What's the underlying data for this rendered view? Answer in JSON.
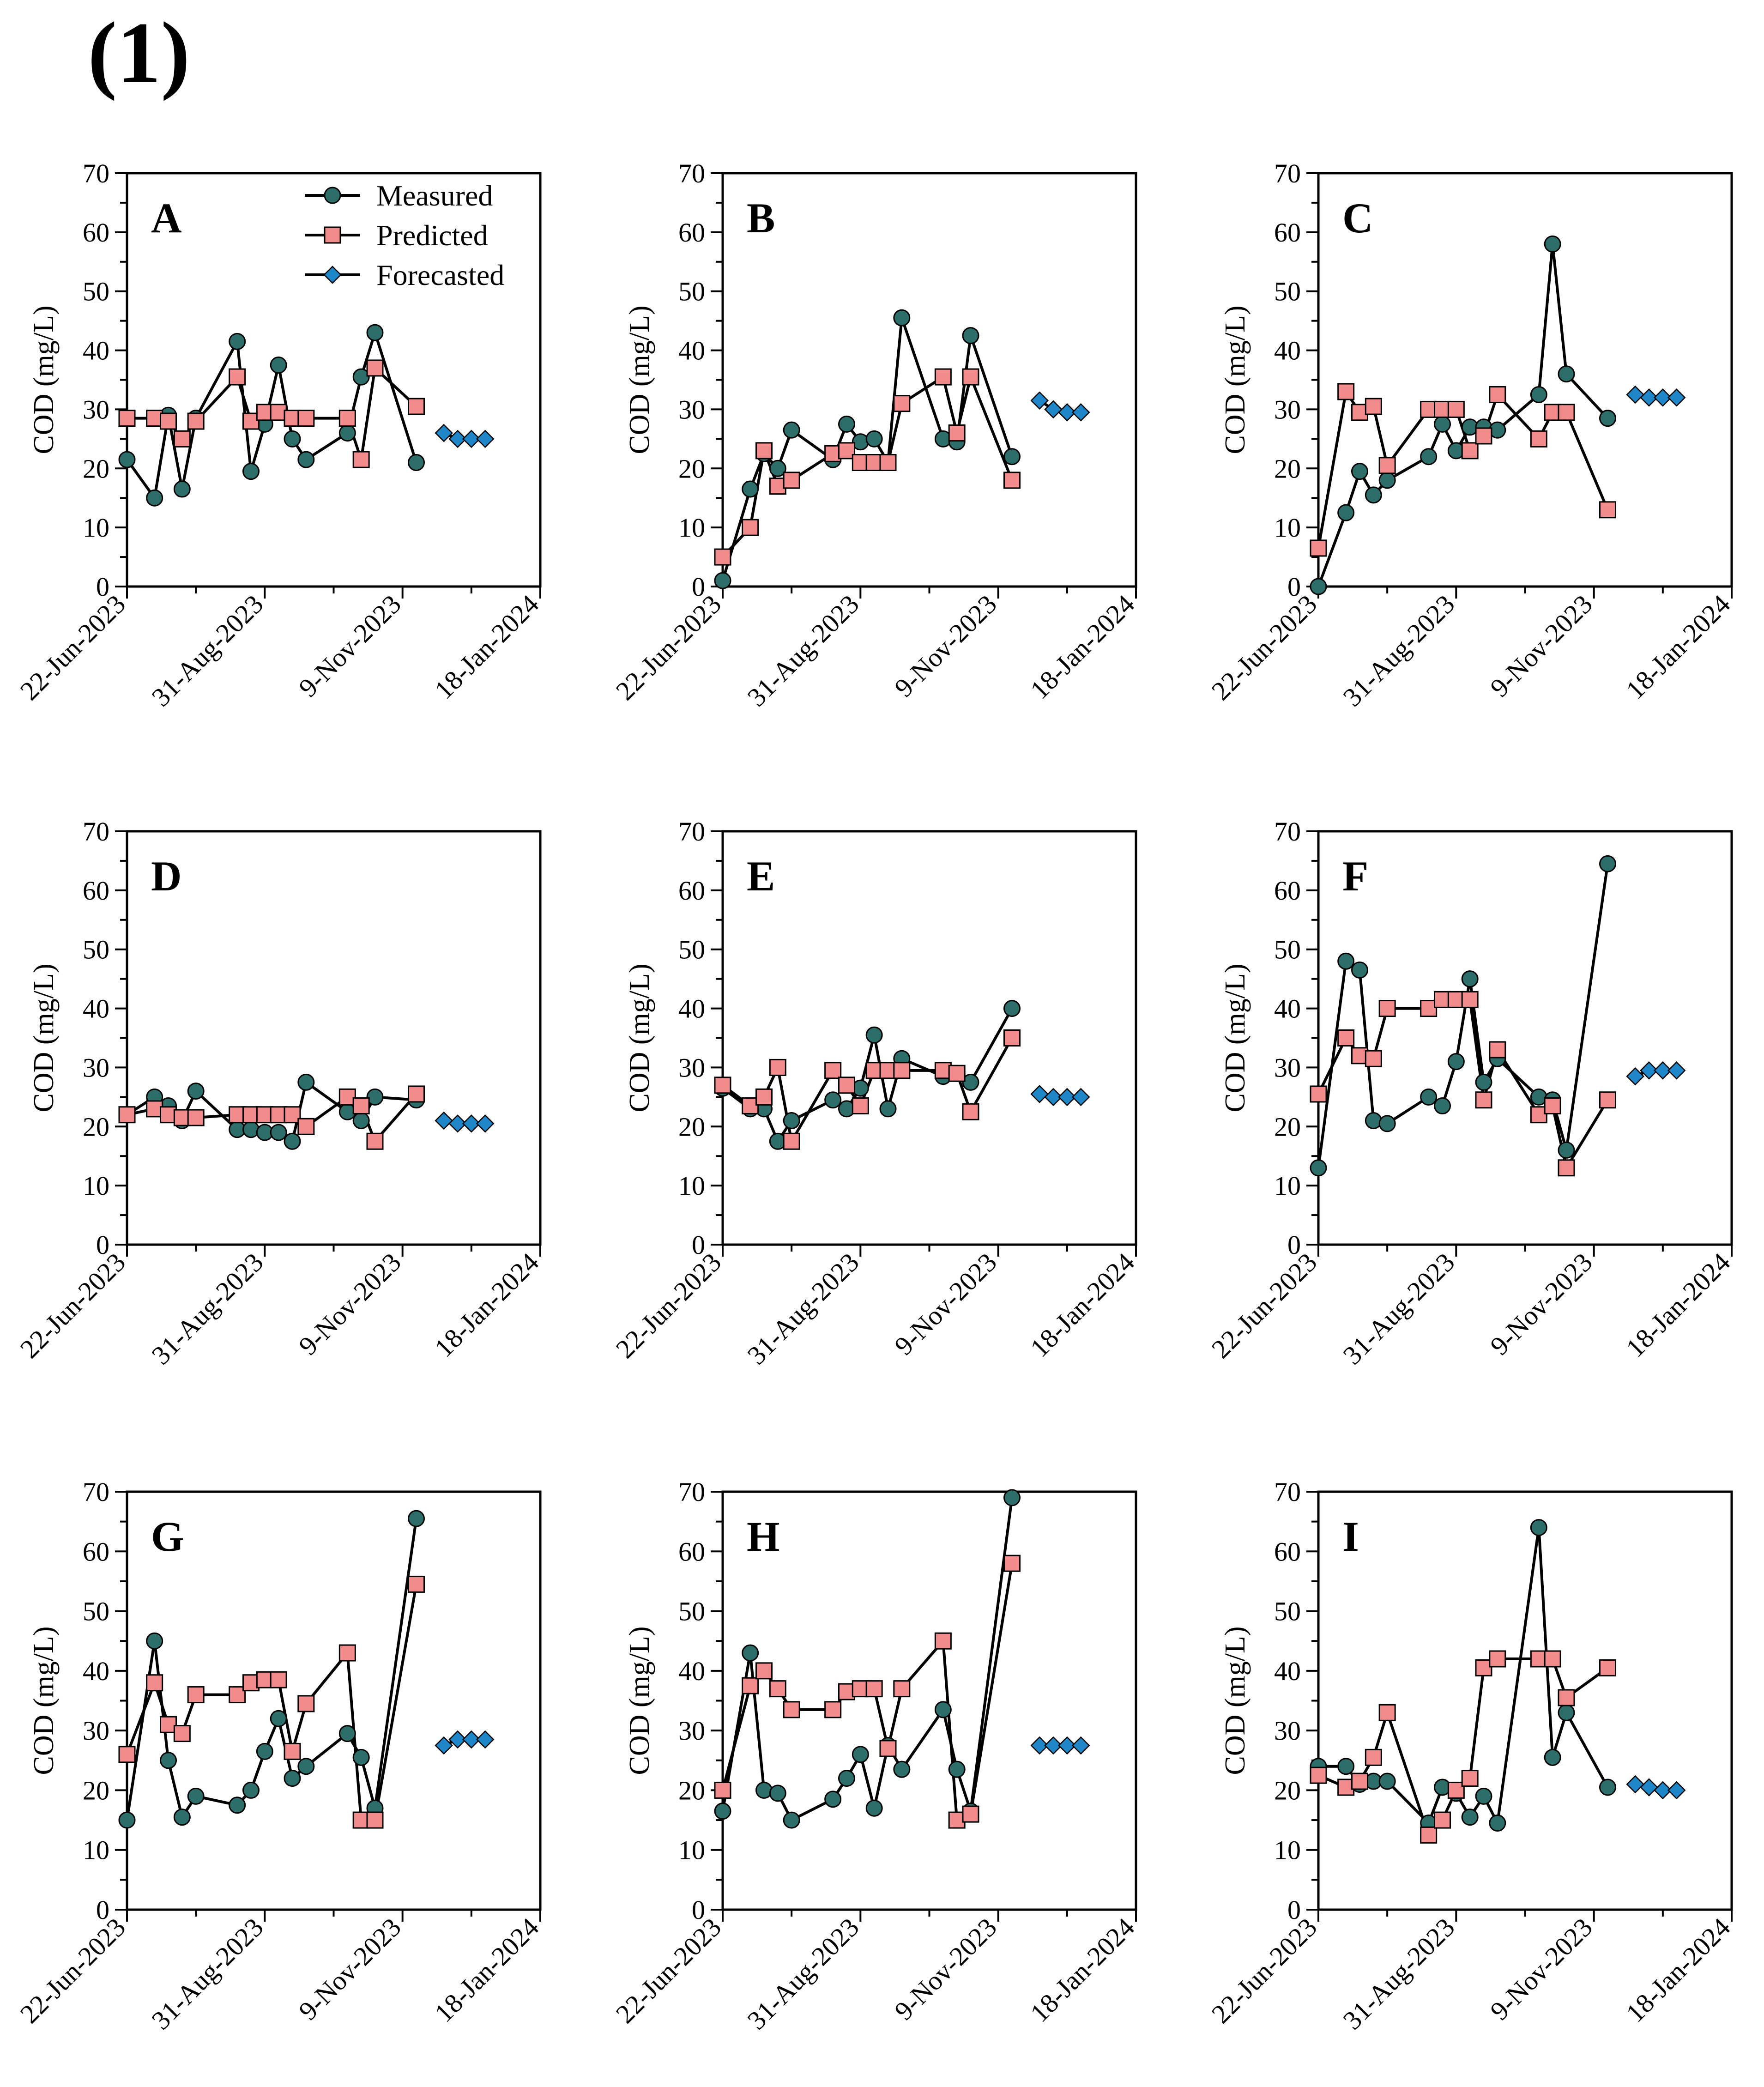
{
  "figure_label": "(1)",
  "colors": {
    "measured": "#2e6e6a",
    "predicted": "#f28b8b",
    "forecasted": "#1f87c8",
    "axis": "#000000"
  },
  "chart_data": {
    "type": "line",
    "ylabel": "COD (mg/L)",
    "ylim": [
      0,
      70
    ],
    "y_ticks": [
      0,
      10,
      20,
      30,
      40,
      50,
      60,
      70
    ],
    "x_ticks": [
      "22-Jun-2023",
      "31-Aug-2023",
      "9-Nov-2023",
      "18-Jan-2024"
    ],
    "x_tick_days": [
      0,
      70,
      140,
      210
    ],
    "x_unit": "days since 22-Jun-2023",
    "legend": [
      "Measured",
      "Predicted",
      "Forecasted"
    ],
    "panels": [
      {
        "label": "A",
        "measured": [
          [
            0,
            21.5
          ],
          [
            14,
            15
          ],
          [
            21,
            29
          ],
          [
            28,
            16.5
          ],
          [
            35,
            28.5
          ],
          [
            56,
            41.5
          ],
          [
            63,
            19.5
          ],
          [
            70,
            27.5
          ],
          [
            77,
            37.5
          ],
          [
            84,
            25
          ],
          [
            91,
            21.5
          ],
          [
            112,
            26
          ],
          [
            119,
            35.5
          ],
          [
            126,
            43
          ],
          [
            147,
            21
          ]
        ],
        "predicted": [
          [
            0,
            28.5
          ],
          [
            14,
            28.5
          ],
          [
            21,
            28
          ],
          [
            28,
            25
          ],
          [
            35,
            28
          ],
          [
            56,
            35.5
          ],
          [
            63,
            28
          ],
          [
            70,
            29.5
          ],
          [
            77,
            29.5
          ],
          [
            84,
            28.5
          ],
          [
            91,
            28.5
          ],
          [
            112,
            28.5
          ],
          [
            119,
            21.5
          ],
          [
            126,
            37
          ],
          [
            147,
            30.5
          ]
        ],
        "forecasted": [
          [
            161,
            26
          ],
          [
            168,
            25
          ],
          [
            175,
            25
          ],
          [
            182,
            25
          ]
        ]
      },
      {
        "label": "B",
        "measured": [
          [
            0,
            1
          ],
          [
            14,
            16.5
          ],
          [
            21,
            22.5
          ],
          [
            28,
            20
          ],
          [
            35,
            26.5
          ],
          [
            56,
            21.5
          ],
          [
            63,
            27.5
          ],
          [
            70,
            24.5
          ],
          [
            77,
            25
          ],
          [
            84,
            21
          ],
          [
            91,
            45.5
          ],
          [
            112,
            25
          ],
          [
            119,
            24.5
          ],
          [
            126,
            42.5
          ],
          [
            147,
            22
          ]
        ],
        "predicted": [
          [
            0,
            5
          ],
          [
            14,
            10
          ],
          [
            21,
            23
          ],
          [
            28,
            17
          ],
          [
            35,
            18
          ],
          [
            56,
            22.5
          ],
          [
            63,
            23
          ],
          [
            70,
            21
          ],
          [
            77,
            21
          ],
          [
            84,
            21
          ],
          [
            91,
            31
          ],
          [
            112,
            35.5
          ],
          [
            119,
            26
          ],
          [
            126,
            35.5
          ],
          [
            147,
            18
          ]
        ],
        "forecasted": [
          [
            161,
            31.5
          ],
          [
            168,
            30
          ],
          [
            175,
            29.5
          ],
          [
            182,
            29.5
          ]
        ]
      },
      {
        "label": "C",
        "measured": [
          [
            0,
            0
          ],
          [
            14,
            12.5
          ],
          [
            21,
            19.5
          ],
          [
            28,
            15.5
          ],
          [
            35,
            18
          ],
          [
            56,
            22
          ],
          [
            63,
            27.5
          ],
          [
            70,
            23
          ],
          [
            77,
            27
          ],
          [
            84,
            27
          ],
          [
            91,
            26.5
          ],
          [
            112,
            32.5
          ],
          [
            119,
            58
          ],
          [
            126,
            36
          ],
          [
            147,
            28.5
          ]
        ],
        "predicted": [
          [
            0,
            6.5
          ],
          [
            14,
            33
          ],
          [
            21,
            29.5
          ],
          [
            28,
            30.5
          ],
          [
            35,
            20.5
          ],
          [
            56,
            30
          ],
          [
            63,
            30
          ],
          [
            70,
            30
          ],
          [
            77,
            23
          ],
          [
            84,
            25.5
          ],
          [
            91,
            32.5
          ],
          [
            112,
            25
          ],
          [
            119,
            29.5
          ],
          [
            126,
            29.5
          ],
          [
            147,
            13
          ]
        ],
        "forecasted": [
          [
            161,
            32.5
          ],
          [
            168,
            32
          ],
          [
            175,
            32
          ],
          [
            182,
            32
          ]
        ]
      },
      {
        "label": "D",
        "measured": [
          [
            0,
            22
          ],
          [
            14,
            25
          ],
          [
            21,
            23.5
          ],
          [
            28,
            21
          ],
          [
            35,
            26
          ],
          [
            56,
            19.5
          ],
          [
            63,
            19.5
          ],
          [
            70,
            19
          ],
          [
            77,
            19
          ],
          [
            84,
            17.5
          ],
          [
            91,
            27.5
          ],
          [
            112,
            22.5
          ],
          [
            119,
            21
          ],
          [
            126,
            25
          ],
          [
            147,
            24.5
          ]
        ],
        "predicted": [
          [
            0,
            22
          ],
          [
            14,
            23
          ],
          [
            21,
            22
          ],
          [
            28,
            21.5
          ],
          [
            35,
            21.5
          ],
          [
            56,
            22
          ],
          [
            63,
            22
          ],
          [
            70,
            22
          ],
          [
            77,
            22
          ],
          [
            84,
            22
          ],
          [
            91,
            20
          ],
          [
            112,
            25
          ],
          [
            119,
            23.5
          ],
          [
            126,
            17.5
          ],
          [
            147,
            25.5
          ]
        ],
        "forecasted": [
          [
            161,
            21
          ],
          [
            168,
            20.5
          ],
          [
            175,
            20.5
          ],
          [
            182,
            20.5
          ]
        ]
      },
      {
        "label": "E",
        "measured": [
          [
            0,
            26.5
          ],
          [
            14,
            23
          ],
          [
            21,
            23
          ],
          [
            28,
            17.5
          ],
          [
            35,
            21
          ],
          [
            56,
            24.5
          ],
          [
            63,
            23
          ],
          [
            70,
            26.5
          ],
          [
            77,
            35.5
          ],
          [
            84,
            23
          ],
          [
            91,
            31.5
          ],
          [
            112,
            28.5
          ],
          [
            119,
            29
          ],
          [
            126,
            27.5
          ],
          [
            147,
            40
          ]
        ],
        "predicted": [
          [
            0,
            27
          ],
          [
            14,
            23.5
          ],
          [
            21,
            25
          ],
          [
            28,
            30
          ],
          [
            35,
            17.5
          ],
          [
            56,
            29.5
          ],
          [
            63,
            27
          ],
          [
            70,
            23.5
          ],
          [
            77,
            29.5
          ],
          [
            84,
            29.5
          ],
          [
            91,
            29.5
          ],
          [
            112,
            29.5
          ],
          [
            119,
            29
          ],
          [
            126,
            22.5
          ],
          [
            147,
            35
          ]
        ],
        "forecasted": [
          [
            161,
            25.5
          ],
          [
            168,
            25
          ],
          [
            175,
            25
          ],
          [
            182,
            25
          ]
        ]
      },
      {
        "label": "F",
        "measured": [
          [
            0,
            13
          ],
          [
            14,
            48
          ],
          [
            21,
            46.5
          ],
          [
            28,
            21
          ],
          [
            35,
            20.5
          ],
          [
            56,
            25
          ],
          [
            63,
            23.5
          ],
          [
            70,
            31
          ],
          [
            77,
            45
          ],
          [
            84,
            27.5
          ],
          [
            91,
            31.5
          ],
          [
            112,
            25
          ],
          [
            119,
            24.5
          ],
          [
            126,
            16
          ],
          [
            147,
            64.5
          ]
        ],
        "predicted": [
          [
            0,
            25.5
          ],
          [
            14,
            35
          ],
          [
            21,
            32
          ],
          [
            28,
            31.5
          ],
          [
            35,
            40
          ],
          [
            56,
            40
          ],
          [
            63,
            41.5
          ],
          [
            70,
            41.5
          ],
          [
            77,
            41.5
          ],
          [
            84,
            24.5
          ],
          [
            91,
            33
          ],
          [
            112,
            22
          ],
          [
            119,
            23.5
          ],
          [
            126,
            13
          ],
          [
            147,
            24.5
          ]
        ],
        "forecasted": [
          [
            161,
            28.5
          ],
          [
            168,
            29.5
          ],
          [
            175,
            29.5
          ],
          [
            182,
            29.5
          ]
        ]
      },
      {
        "label": "G",
        "measured": [
          [
            0,
            15
          ],
          [
            14,
            45
          ],
          [
            21,
            25
          ],
          [
            28,
            15.5
          ],
          [
            35,
            19
          ],
          [
            56,
            17.5
          ],
          [
            63,
            20
          ],
          [
            70,
            26.5
          ],
          [
            77,
            32
          ],
          [
            84,
            22
          ],
          [
            91,
            24
          ],
          [
            112,
            29.5
          ],
          [
            119,
            25.5
          ],
          [
            126,
            17
          ],
          [
            147,
            65.5
          ]
        ],
        "predicted": [
          [
            0,
            26
          ],
          [
            14,
            38
          ],
          [
            21,
            31
          ],
          [
            28,
            29.5
          ],
          [
            35,
            36
          ],
          [
            56,
            36
          ],
          [
            63,
            38
          ],
          [
            70,
            38.5
          ],
          [
            77,
            38.5
          ],
          [
            84,
            26.5
          ],
          [
            91,
            34.5
          ],
          [
            112,
            43
          ],
          [
            119,
            15
          ],
          [
            126,
            15
          ],
          [
            147,
            54.5
          ]
        ],
        "forecasted": [
          [
            161,
            27.5
          ],
          [
            168,
            28.5
          ],
          [
            175,
            28.5
          ],
          [
            182,
            28.5
          ]
        ]
      },
      {
        "label": "H",
        "measured": [
          [
            0,
            16.5
          ],
          [
            14,
            43
          ],
          [
            21,
            20
          ],
          [
            28,
            19.5
          ],
          [
            35,
            15
          ],
          [
            56,
            18.5
          ],
          [
            63,
            22
          ],
          [
            70,
            26
          ],
          [
            77,
            17
          ],
          [
            84,
            27.5
          ],
          [
            91,
            23.5
          ],
          [
            112,
            33.5
          ],
          [
            119,
            23.5
          ],
          [
            126,
            16.5
          ],
          [
            147,
            69
          ]
        ],
        "predicted": [
          [
            0,
            20
          ],
          [
            14,
            37.5
          ],
          [
            21,
            40
          ],
          [
            28,
            37
          ],
          [
            35,
            33.5
          ],
          [
            56,
            33.5
          ],
          [
            63,
            36.5
          ],
          [
            70,
            37
          ],
          [
            77,
            37
          ],
          [
            84,
            27
          ],
          [
            91,
            37
          ],
          [
            112,
            45
          ],
          [
            119,
            15
          ],
          [
            126,
            16
          ],
          [
            147,
            58
          ]
        ],
        "forecasted": [
          [
            161,
            27.5
          ],
          [
            168,
            27.5
          ],
          [
            175,
            27.5
          ],
          [
            182,
            27.5
          ]
        ]
      },
      {
        "label": "I",
        "measured": [
          [
            0,
            24
          ],
          [
            14,
            24
          ],
          [
            21,
            21
          ],
          [
            28,
            21.5
          ],
          [
            35,
            21.5
          ],
          [
            56,
            14.5
          ],
          [
            63,
            20.5
          ],
          [
            70,
            19.5
          ],
          [
            77,
            15.5
          ],
          [
            84,
            19
          ],
          [
            91,
            14.5
          ],
          [
            112,
            64
          ],
          [
            119,
            25.5
          ],
          [
            126,
            33
          ],
          [
            147,
            20.5
          ]
        ],
        "predicted": [
          [
            0,
            22.5
          ],
          [
            14,
            20.5
          ],
          [
            21,
            21.5
          ],
          [
            28,
            25.5
          ],
          [
            35,
            33
          ],
          [
            56,
            12.5
          ],
          [
            63,
            15
          ],
          [
            70,
            20
          ],
          [
            77,
            22
          ],
          [
            84,
            40.5
          ],
          [
            91,
            42
          ],
          [
            112,
            42
          ],
          [
            119,
            42
          ],
          [
            126,
            35.5
          ],
          [
            147,
            40.5
          ]
        ],
        "forecasted": [
          [
            161,
            21
          ],
          [
            168,
            20.5
          ],
          [
            175,
            20
          ],
          [
            182,
            20
          ]
        ]
      }
    ]
  }
}
